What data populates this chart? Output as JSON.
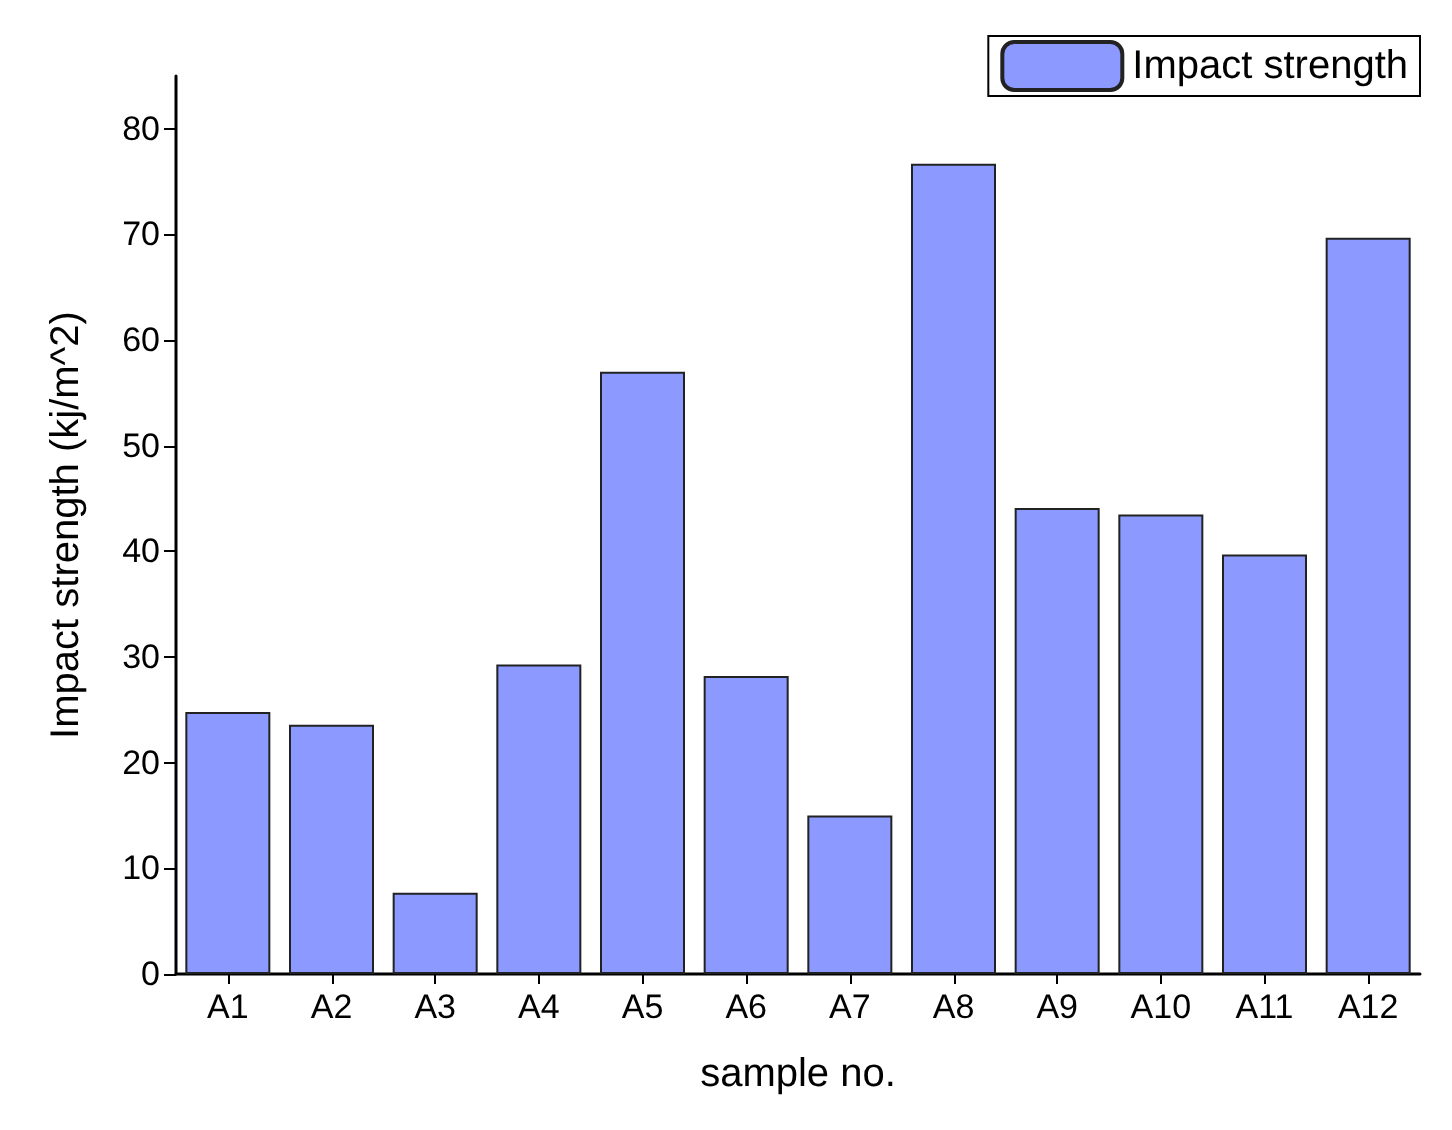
{
  "chart_data": {
    "type": "bar",
    "xlabel": "sample no.",
    "ylabel": "Impact strength (kj/m^2)",
    "categories": [
      "A1",
      "A2",
      "A3",
      "A4",
      "A5",
      "A6",
      "A7",
      "A8",
      "A9",
      "A10",
      "A11",
      "A12"
    ],
    "series": [
      {
        "name": "Impact strength",
        "color": "#8c99ff",
        "values": [
          24.8,
          23.6,
          7.7,
          29.3,
          57.0,
          28.2,
          15.0,
          76.7,
          44.1,
          43.5,
          39.7,
          69.7
        ]
      }
    ],
    "ylim": [
      0,
      85
    ],
    "yticks": [
      0,
      10,
      20,
      30,
      40,
      50,
      60,
      70,
      80
    ],
    "grid": false,
    "legend": "top right"
  }
}
